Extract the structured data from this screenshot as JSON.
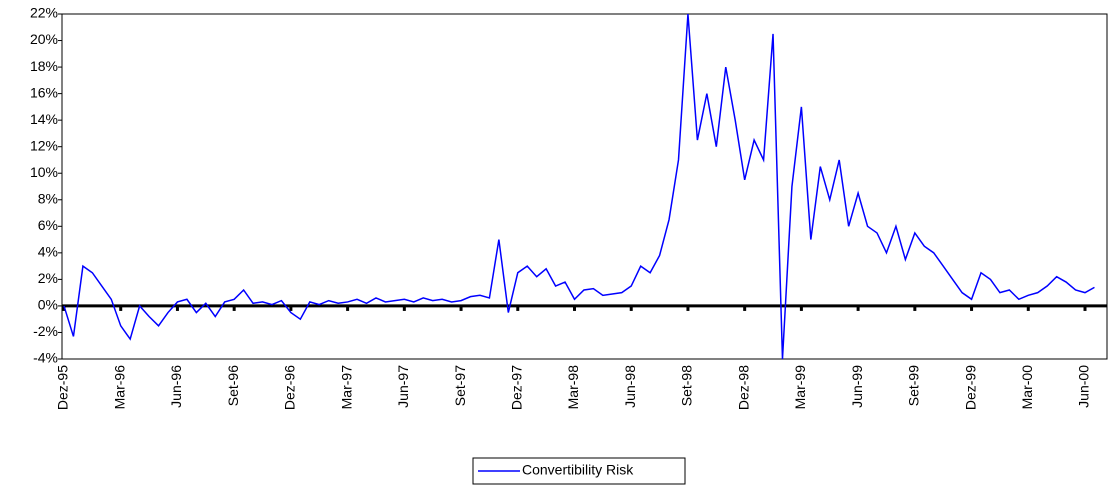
{
  "chart_data": {
    "type": "line",
    "categories": [
      "Dez-95",
      null,
      null,
      null,
      null,
      null,
      "Mar-96",
      null,
      null,
      null,
      null,
      null,
      "Jun-96",
      null,
      null,
      null,
      null,
      null,
      "Set-96",
      null,
      null,
      null,
      null,
      null,
      "Dez-96",
      null,
      null,
      null,
      null,
      null,
      "Mar-97",
      null,
      null,
      null,
      null,
      null,
      "Jun-97",
      null,
      null,
      null,
      null,
      null,
      "Set-97",
      null,
      null,
      null,
      null,
      null,
      "Dez-97",
      null,
      null,
      null,
      null,
      null,
      "Mar-98",
      null,
      null,
      null,
      null,
      null,
      "Jun-98",
      null,
      null,
      null,
      null,
      null,
      "Set-98",
      null,
      null,
      null,
      null,
      null,
      "Dez-98",
      null,
      null,
      null,
      null,
      null,
      "Mar-99",
      null,
      null,
      null,
      null,
      null,
      "Jun-99",
      null,
      null,
      null,
      null,
      null,
      "Set-99",
      null,
      null,
      null,
      null,
      null,
      "Dez-99",
      null,
      null,
      null,
      null,
      null,
      "Mar-00",
      null,
      null,
      null,
      null,
      null,
      "Jun-00",
      null
    ],
    "series": [
      {
        "name": "Convertibility Risk",
        "color": "#0000ff",
        "values": [
          0,
          -2.3,
          3.0,
          2.5,
          1.5,
          0.5,
          -1.5,
          -2.5,
          0.0,
          -0.8,
          -1.5,
          -0.5,
          0.3,
          0.5,
          -0.5,
          0.2,
          -0.8,
          0.3,
          0.5,
          1.2,
          0.2,
          0.3,
          0.1,
          0.4,
          -0.5,
          -1.0,
          0.3,
          0.1,
          0.4,
          0.2,
          0.3,
          0.5,
          0.2,
          0.6,
          0.3,
          0.4,
          0.5,
          0.3,
          0.6,
          0.4,
          0.5,
          0.3,
          0.4,
          0.7,
          0.8,
          0.6,
          5.0,
          -0.5,
          2.5,
          3.0,
          2.2,
          2.8,
          1.5,
          1.8,
          0.5,
          1.2,
          1.3,
          0.8,
          0.9,
          1.0,
          1.5,
          3.0,
          2.5,
          3.8,
          6.5,
          11.0,
          22.0,
          12.5,
          16.0,
          12.0,
          18.0,
          14.0,
          9.5,
          12.5,
          11.0,
          20.5,
          -4.0,
          9.0,
          15.0,
          5.0,
          10.5,
          8.0,
          11.0,
          6.0,
          8.5,
          6.0,
          5.5,
          4.0,
          6.0,
          3.5,
          5.5,
          4.5,
          4.0,
          3.0,
          2.0,
          1.0,
          0.5,
          2.5,
          2.0,
          1.0,
          1.2,
          0.5,
          0.8,
          1.0,
          1.5,
          2.2,
          1.8,
          1.2,
          1.0,
          1.4
        ]
      }
    ],
    "ylim": [
      -4,
      22
    ],
    "yticks": [
      {
        "value": -4,
        "label": "-4%"
      },
      {
        "value": -2,
        "label": "-2%"
      },
      {
        "value": 0,
        "label": "0%"
      },
      {
        "value": 2,
        "label": "2%"
      },
      {
        "value": 4,
        "label": "4%"
      },
      {
        "value": 6,
        "label": "6%"
      },
      {
        "value": 8,
        "label": "8%"
      },
      {
        "value": 10,
        "label": "10%"
      },
      {
        "value": 12,
        "label": "12%"
      },
      {
        "value": 14,
        "label": "14%"
      },
      {
        "value": 16,
        "label": "16%"
      },
      {
        "value": 18,
        "label": "18%"
      },
      {
        "value": 20,
        "label": "20%"
      },
      {
        "value": 22,
        "label": "22%"
      }
    ],
    "grid": false,
    "legend": "bottom"
  }
}
